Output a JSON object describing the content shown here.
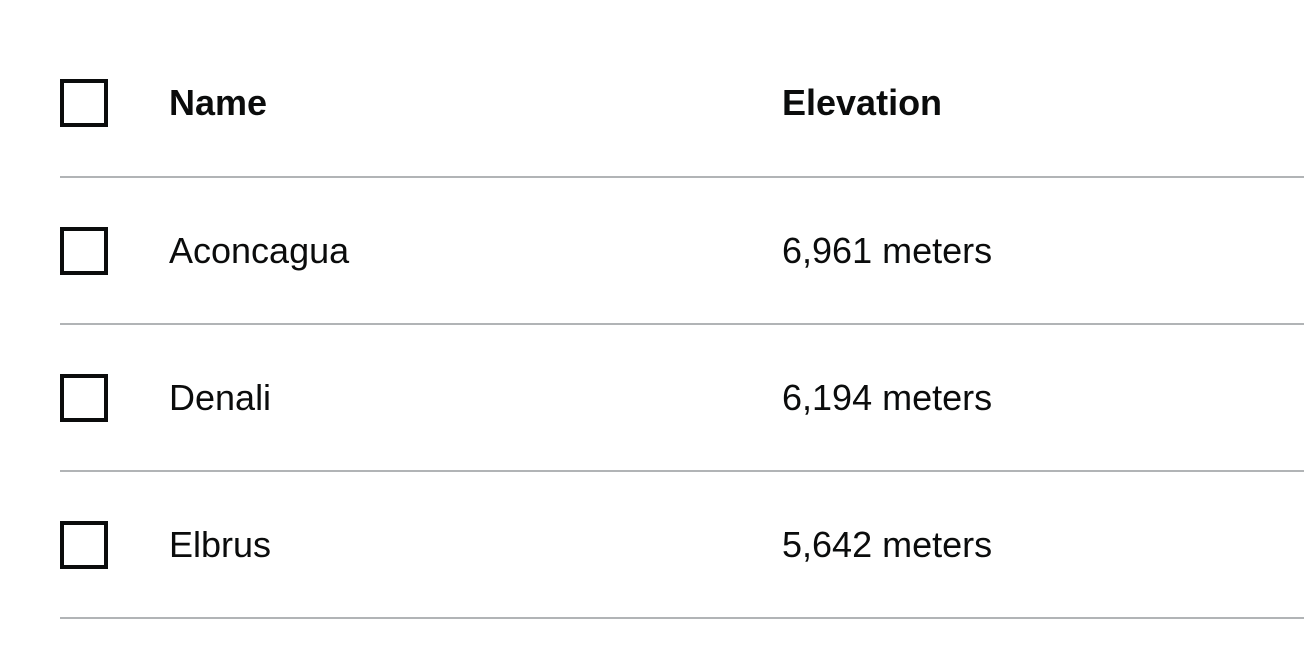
{
  "table": {
    "headers": {
      "name": "Name",
      "elevation": "Elevation"
    },
    "rows": [
      {
        "name": "Aconcagua",
        "elevation": "6,961 meters",
        "checked": false
      },
      {
        "name": "Denali",
        "elevation": "6,194 meters",
        "checked": false
      },
      {
        "name": "Elbrus",
        "elevation": "5,642 meters",
        "checked": false
      }
    ]
  }
}
